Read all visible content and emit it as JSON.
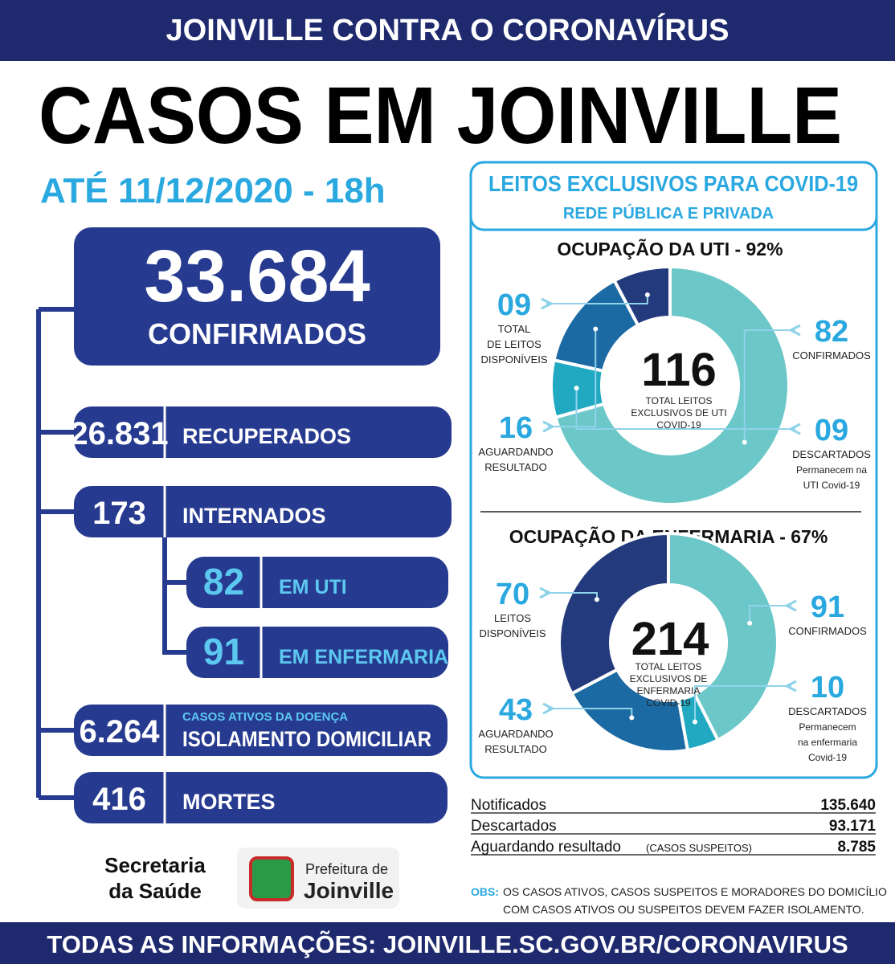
{
  "header": {
    "banner": "JOINVILLE CONTRA O CORONAVÍRUS",
    "title": "CASOS EM JOINVILLE",
    "date": "ATÉ 11/12/2020 - 18h"
  },
  "confirmed": {
    "value": "33.684",
    "label": "CONFIRMADOS"
  },
  "rows": [
    {
      "value": "26.831",
      "label": "RECUPERADOS"
    },
    {
      "value": "173",
      "label": "INTERNADOS"
    },
    {
      "value": "82",
      "label": "EM UTI"
    },
    {
      "value": "91",
      "label": "EM ENFERMARIA"
    },
    {
      "value": "6.264",
      "note": "CASOS ATIVOS DA DOENÇA",
      "label": "ISOLAMENTO DOMICILIAR"
    },
    {
      "value": "416",
      "label": "MORTES"
    }
  ],
  "beds": {
    "title": "LEITOS EXCLUSIVOS PARA COVID-19",
    "subtitle": "REDE PÚBLICA E PRIVADA",
    "charts": [
      {
        "type": "donut",
        "title": "OCUPAÇÃO DA UTI - 92%",
        "total": 116,
        "total_caption": [
          "TOTAL LEITOS",
          "EXCLUSIVOS DE UTI",
          "COVID-19"
        ],
        "segments": [
          {
            "value": 82,
            "color": "#6cc7c8",
            "caption": [
              "CONFIRMADOS"
            ]
          },
          {
            "value": 9,
            "label": "09",
            "color": "#22a9c2",
            "caption": [
              "DESCARTADOS",
              "Permanecem na",
              "UTI Covid-19"
            ]
          },
          {
            "value": 16,
            "color": "#1c6aa4",
            "caption": [
              "AGUARDANDO",
              "RESULTADO"
            ]
          },
          {
            "value": 9,
            "label": "09",
            "color": "#233a7c",
            "caption": [
              "TOTAL",
              "DE LEITOS",
              "DISPONÍVEIS"
            ]
          }
        ]
      },
      {
        "type": "donut",
        "title": "OCUPAÇÃO DA ENFERMARIA - 67%",
        "total": 214,
        "total_caption": [
          "TOTAL LEITOS",
          "EXCLUSIVOS DE",
          "ENFERMARIA",
          "COVID-19"
        ],
        "segments": [
          {
            "value": 91,
            "color": "#6cc7c8",
            "caption": [
              "CONFIRMADOS"
            ]
          },
          {
            "value": 10,
            "color": "#22a9c2",
            "caption": [
              "DESCARTADOS",
              "Permanecem",
              "na enfermaria",
              "Covid-19"
            ]
          },
          {
            "value": 43,
            "color": "#1c6aa4",
            "caption": [
              "AGUARDANDO",
              "RESULTADO"
            ]
          },
          {
            "value": 70,
            "color": "#233a7c",
            "caption": [
              "LEITOS",
              "DISPONÍVEIS"
            ]
          }
        ]
      }
    ]
  },
  "summary": [
    {
      "label": "Notificados",
      "value": "135.640"
    },
    {
      "label": "Descartados",
      "value": "93.171"
    },
    {
      "label": "Aguardando resultado",
      "note": "(CASOS SUSPEITOS)",
      "value": "8.785"
    }
  ],
  "logos": {
    "secretaria": [
      "Secretaria",
      "da Saúde"
    ],
    "prefeitura": [
      "Prefeitura de",
      "Joinville"
    ]
  },
  "obs": {
    "label": "OBS:",
    "lines": [
      "OS CASOS ATIVOS, CASOS SUSPEITOS E MORADORES DO DOMICÍLIO",
      "COM CASOS ATIVOS OU SUSPEITOS DEVEM FAZER ISOLAMENTO."
    ]
  },
  "footer": "TODAS AS INFORMAÇÕES:  JOINVILLE.SC.GOV.BR/CORONAVIRUS"
}
